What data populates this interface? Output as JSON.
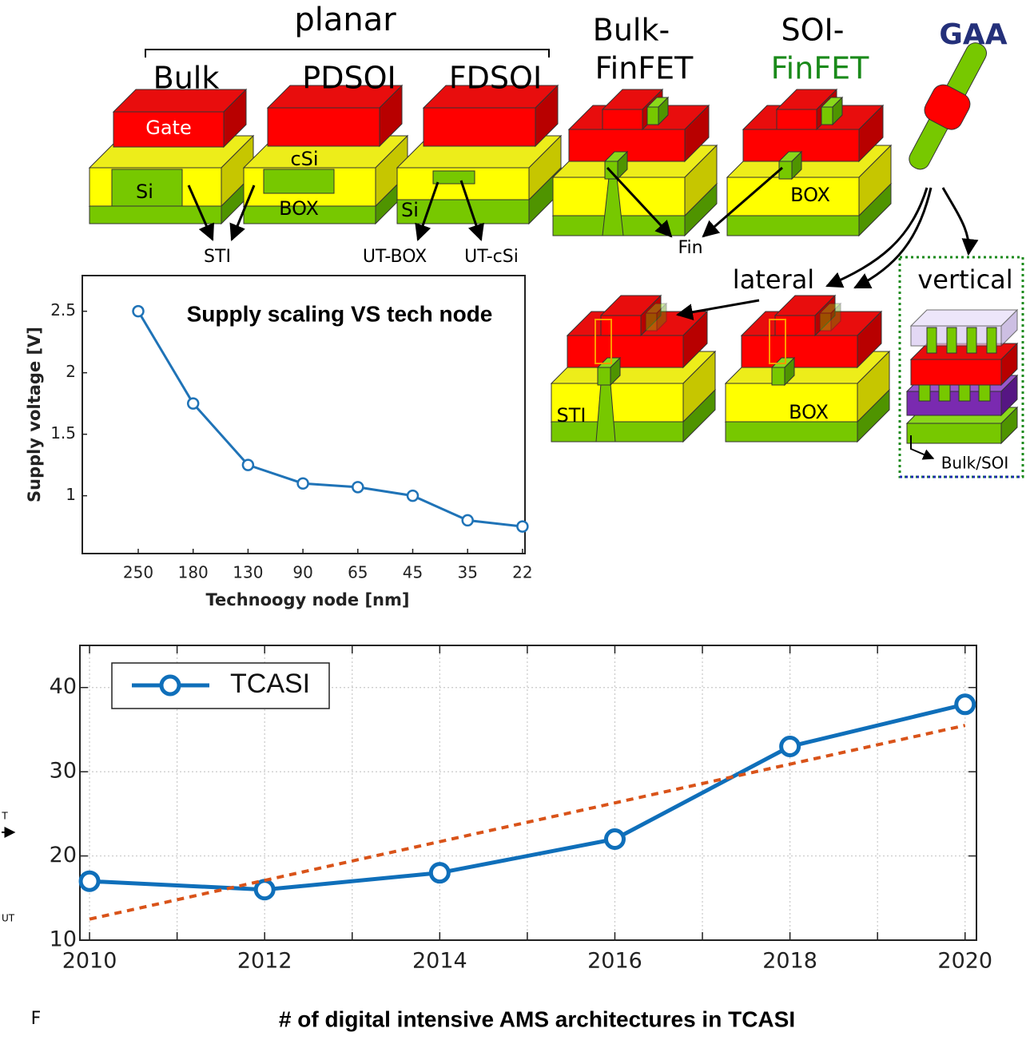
{
  "diagram": {
    "labels": [
      "planar",
      "Bulk",
      "PDSOI",
      "FDSOI",
      "Bulk-",
      "FinFET",
      "SOI-",
      "FinFET",
      "GAA",
      "Gate",
      "Si",
      "cSi",
      "BOX",
      "Si",
      "BOX",
      "STI",
      "BOX",
      "Bulk/SOI",
      "STI",
      "UT-BOX",
      "UT-cSi",
      "Fin",
      "lateral",
      "vertical"
    ],
    "fragments": [
      "T",
      "UT",
      "F"
    ]
  },
  "chart_data": [
    {
      "type": "line",
      "title": "Supply scaling VS tech node",
      "xlabel": "Technoogy node [nm]",
      "ylabel": "Supply voltage [V]",
      "categories": [
        "250",
        "180",
        "130",
        "90",
        "65",
        "45",
        "35",
        "22"
      ],
      "series": [
        {
          "color": "#1f73b7",
          "values": [
            2.5,
            1.75,
            1.25,
            1.1,
            1.07,
            1.0,
            0.8,
            0.75
          ]
        }
      ],
      "ylim": [
        0.53,
        2.79
      ],
      "yticks": [
        1,
        1.5,
        2,
        2.5
      ],
      "grid": false
    },
    {
      "type": "line",
      "title": "# of digital intensive AMS architectures in TCASI",
      "x": [
        2010,
        2012,
        2014,
        2016,
        2018,
        2020
      ],
      "series": [
        {
          "name": "TCASI",
          "color": "#0f6fba",
          "values": [
            17,
            16,
            18,
            22,
            33,
            38
          ]
        },
        {
          "color": "#d95319",
          "dashed": true,
          "values": [
            12.5,
            17.1,
            21.7,
            26.3,
            30.9,
            35.5
          ]
        }
      ],
      "xlim": [
        2009.89,
        2020.13
      ],
      "ylim": [
        10,
        45
      ],
      "xticks": [
        2010,
        2012,
        2014,
        2016,
        2018,
        2020
      ],
      "yticks": [
        10,
        20,
        30,
        40
      ],
      "grid": true,
      "legend": "upper left"
    }
  ]
}
